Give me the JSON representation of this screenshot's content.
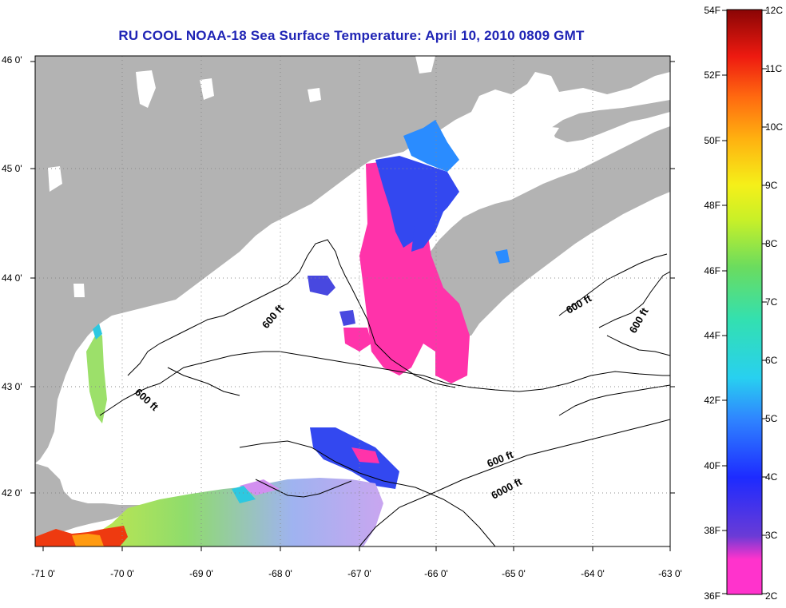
{
  "title": "RU COOL  NOAA-18  Sea Surface Temperature:  April 10, 2010 0809 GMT",
  "lon_ticks": [
    "-71 0'",
    "-70 0'",
    "-69 0'",
    "-68 0'",
    "-67 0'",
    "-66 0'",
    "-65 0'",
    "-64 0'",
    "-63 0'"
  ],
  "lat_ticks": [
    "46 0'",
    "45 0'",
    "44 0'",
    "43 0'",
    "42 0'"
  ],
  "contour_labels": [
    "600 ft",
    "600 ft",
    "600 ft",
    "600 ft",
    "600 ft",
    "6000 ft"
  ],
  "colorbar": {
    "fahrenheit": [
      "54F",
      "52F",
      "50F",
      "48F",
      "46F",
      "44F",
      "42F",
      "40F",
      "38F",
      "36F"
    ],
    "celsius": [
      "12C",
      "11C",
      "10C",
      "9C",
      "8C",
      "7C",
      "6C",
      "5C",
      "4C",
      "3C",
      "2C"
    ]
  },
  "colors": {
    "title": "#1f24b5",
    "land": "#b3b3b3",
    "water": "#ffffff"
  }
}
